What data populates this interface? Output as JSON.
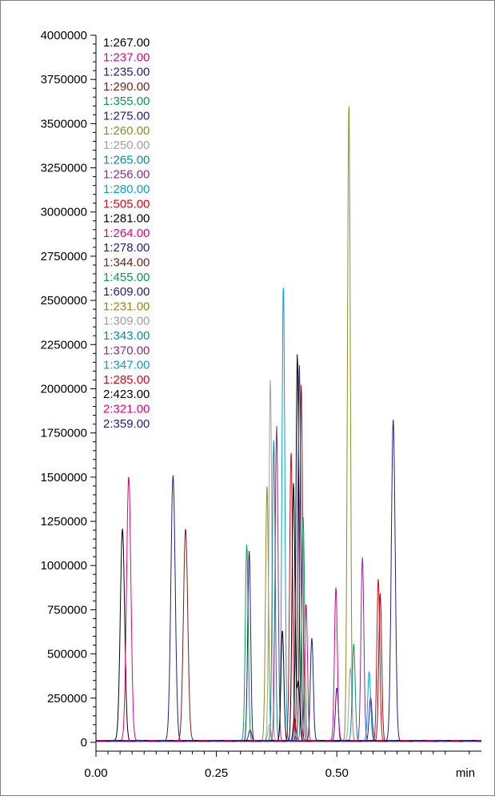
{
  "chart_data": {
    "type": "line",
    "xlabel": "min",
    "ylabel": "",
    "xlim": [
      0.0,
      0.8
    ],
    "ylim": [
      -50000,
      4000000
    ],
    "x_ticks": [
      {
        "value": 0.0,
        "label": "0.00"
      },
      {
        "value": 0.25,
        "label": "0.25"
      },
      {
        "value": 0.5,
        "label": "0.50"
      }
    ],
    "y_ticks": [
      {
        "value": 0,
        "label": "0"
      },
      {
        "value": 250000,
        "label": "250000"
      },
      {
        "value": 500000,
        "label": "500000"
      },
      {
        "value": 750000,
        "label": "750000"
      },
      {
        "value": 1000000,
        "label": "1000000"
      },
      {
        "value": 1250000,
        "label": "1250000"
      },
      {
        "value": 1500000,
        "label": "1500000"
      },
      {
        "value": 1750000,
        "label": "1750000"
      },
      {
        "value": 2000000,
        "label": "2000000"
      },
      {
        "value": 2250000,
        "label": "2250000"
      },
      {
        "value": 2500000,
        "label": "2500000"
      },
      {
        "value": 2750000,
        "label": "2750000"
      },
      {
        "value": 3000000,
        "label": "3000000"
      },
      {
        "value": 3250000,
        "label": "3250000"
      },
      {
        "value": 3500000,
        "label": "3500000"
      },
      {
        "value": 3750000,
        "label": "3750000"
      },
      {
        "value": 4000000,
        "label": "4000000"
      }
    ],
    "grid": false,
    "legend_position": "top-left",
    "series": [
      {
        "name": "1:267.00",
        "color": "#000000",
        "peak_time": 0.055,
        "peak_height": 1200000,
        "width": 0.0045
      },
      {
        "name": "1:237.00",
        "color": "#e6007e",
        "peak_time": 0.068,
        "peak_height": 1500000,
        "width": 0.0045
      },
      {
        "name": "1:235.00",
        "color": "#1d2088",
        "peak_time": 0.16,
        "peak_height": 1500000,
        "width": 0.0045
      },
      {
        "name": "1:290.00",
        "color": "#7a1e16",
        "peak_time": 0.186,
        "peak_height": 1200000,
        "width": 0.0045
      },
      {
        "name": "1:355.00",
        "color": "#00a050",
        "peak_time": 0.313,
        "peak_height": 1110000,
        "width": 0.003
      },
      {
        "name": "1:275.00",
        "color": "#1d2088",
        "peak_time": 0.318,
        "peak_height": 1080000,
        "width": 0.003
      },
      {
        "name": "1:260.00",
        "color": "#8c8c1e",
        "peak_time": 0.355,
        "peak_height": 1450000,
        "width": 0.003
      },
      {
        "name": "1:250.00",
        "color": "#a0a0a0",
        "peak_time": 0.362,
        "peak_height": 2050000,
        "width": 0.003
      },
      {
        "name": "1:265.00",
        "color": "#00928c",
        "peak_time": 0.369,
        "peak_height": 1700000,
        "width": 0.003
      },
      {
        "name": "1:256.00",
        "color": "#8e2a8e",
        "peak_time": 0.375,
        "peak_height": 1780000,
        "width": 0.003
      },
      {
        "name": "1:280.00",
        "color": "#00a0e0",
        "peak_time": 0.389,
        "peak_height": 2580000,
        "width": 0.003
      },
      {
        "name": "1:505.00",
        "color": "#e60012",
        "peak_time": 0.405,
        "peak_height": 1640000,
        "width": 0.003
      },
      {
        "name": "1:281.00",
        "color": "#000000",
        "peak_time": 0.418,
        "peak_height": 2190000,
        "width": 0.003
      },
      {
        "name": "1:264.00",
        "color": "#e6007e",
        "peak_time": 0.436,
        "peak_height": 780000,
        "width": 0.003
      },
      {
        "name": "1:278.00",
        "color": "#1d2088",
        "peak_time": 0.422,
        "peak_height": 2130000,
        "width": 0.003
      },
      {
        "name": "1:344.00",
        "color": "#7a1e16",
        "peak_time": 0.426,
        "peak_height": 2020000,
        "width": 0.003
      },
      {
        "name": "1:455.00",
        "color": "#00a050",
        "peak_time": 0.43,
        "peak_height": 1270000,
        "width": 0.003
      },
      {
        "name": "1:609.00",
        "color": "#1d2088",
        "peak_time": 0.617,
        "peak_height": 1820000,
        "width": 0.004
      },
      {
        "name": "1:231.00",
        "color": "#8c8c1e",
        "peak_time": 0.525,
        "peak_height": 3610000,
        "width": 0.003
      },
      {
        "name": "1:309.00",
        "color": "#a0a0a0",
        "peak_time": 0.528,
        "peak_height": 410000,
        "width": 0.003
      },
      {
        "name": "1:343.00",
        "color": "#00928c",
        "peak_time": 0.535,
        "peak_height": 550000,
        "width": 0.003
      },
      {
        "name": "1:370.00",
        "color": "#8e2a8e",
        "peak_time": 0.553,
        "peak_height": 1040000,
        "width": 0.003
      },
      {
        "name": "1:347.00",
        "color": "#00a0e0",
        "peak_time": 0.567,
        "peak_height": 390000,
        "width": 0.003
      },
      {
        "name": "1:285.00",
        "color": "#e60012",
        "peak_time": 0.586,
        "peak_height": 920000,
        "width": 0.003
      },
      {
        "name": "2:423.00",
        "color": "#000000",
        "peak_time": 0.41,
        "peak_height": 1460000,
        "width": 0.003
      },
      {
        "name": "2:321.00",
        "color": "#e6007e",
        "peak_time": 0.498,
        "peak_height": 870000,
        "width": 0.003
      },
      {
        "name": "2:359.00",
        "color": "#1d2088",
        "peak_time": 0.448,
        "peak_height": 580000,
        "width": 0.003
      }
    ],
    "minor_peaks": [
      {
        "series": "1:235.00",
        "peak_time": 0.32,
        "peak_height": 60000
      },
      {
        "series": "1:281.00",
        "peak_time": 0.387,
        "peak_height": 630000
      },
      {
        "series": "1:344.00",
        "peak_time": 0.59,
        "peak_height": 840000
      },
      {
        "series": "1:309.00",
        "peak_time": 0.36,
        "peak_height": 90000
      },
      {
        "series": "2:423.00",
        "peak_time": 0.42,
        "peak_height": 330000
      },
      {
        "series": "1:275.00",
        "peak_time": 0.5,
        "peak_height": 300000
      },
      {
        "series": "1:609.00",
        "peak_time": 0.57,
        "peak_height": 250000
      },
      {
        "series": "1:256.00",
        "peak_time": 0.412,
        "peak_height": 130000
      }
    ]
  }
}
